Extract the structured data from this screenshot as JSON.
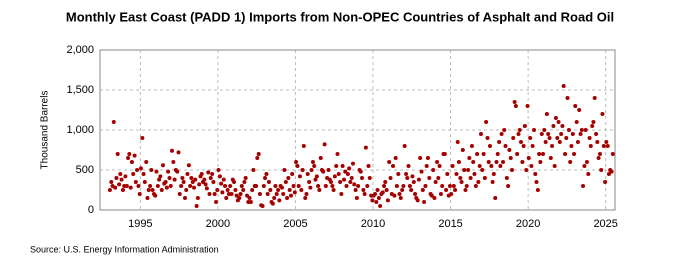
{
  "chart_data": {
    "type": "scatter",
    "title": "Monthly East Coast (PADD 1) Imports from Non-OPEC Countries of Asphalt and Road Oil",
    "y_label": "Thousand Barrels",
    "source": "Source: U.S. Energy Information Administration",
    "color": "#a50000",
    "grid": true,
    "xlim": [
      1992.4,
      2025.6
    ],
    "xticks": [
      1995,
      2000,
      2005,
      2010,
      2015,
      2020,
      2025
    ],
    "ylim": [
      0,
      2000
    ],
    "yticks": [
      0,
      500,
      {
        "value": 1000,
        "label": "1,000"
      },
      {
        "value": 1500,
        "label": "1,500"
      },
      {
        "value": 2000,
        "label": "2,000"
      }
    ],
    "x": [
      1993.04,
      1993.13,
      1993.21,
      1993.29,
      1993.38,
      1993.46,
      1993.54,
      1993.63,
      1993.71,
      1993.79,
      1993.88,
      1993.96,
      1994.04,
      1994.13,
      1994.21,
      1994.29,
      1994.38,
      1994.46,
      1994.54,
      1994.63,
      1994.71,
      1994.79,
      1994.88,
      1994.96,
      1995.04,
      1995.13,
      1995.21,
      1995.29,
      1995.38,
      1995.46,
      1995.54,
      1995.63,
      1995.71,
      1995.79,
      1995.88,
      1995.96,
      1996.04,
      1996.13,
      1996.21,
      1996.29,
      1996.38,
      1996.46,
      1996.54,
      1996.63,
      1996.71,
      1996.79,
      1996.88,
      1996.96,
      1997.04,
      1997.13,
      1997.21,
      1997.29,
      1997.38,
      1997.46,
      1997.54,
      1997.63,
      1997.71,
      1997.79,
      1997.88,
      1997.96,
      1998.04,
      1998.13,
      1998.21,
      1998.29,
      1998.38,
      1998.46,
      1998.54,
      1998.63,
      1998.71,
      1998.79,
      1998.88,
      1998.96,
      1999.04,
      1999.13,
      1999.21,
      1999.29,
      1999.38,
      1999.46,
      1999.54,
      1999.63,
      1999.71,
      1999.79,
      1999.88,
      1999.96,
      2000.04,
      2000.13,
      2000.21,
      2000.29,
      2000.38,
      2000.46,
      2000.54,
      2000.63,
      2000.71,
      2000.79,
      2000.88,
      2000.96,
      2001.04,
      2001.13,
      2001.21,
      2001.29,
      2001.38,
      2001.46,
      2001.54,
      2001.63,
      2001.71,
      2001.79,
      2001.88,
      2001.96,
      2002.04,
      2002.13,
      2002.21,
      2002.29,
      2002.38,
      2002.46,
      2002.54,
      2002.63,
      2002.71,
      2002.79,
      2002.88,
      2002.96,
      2003.04,
      2003.13,
      2003.21,
      2003.29,
      2003.38,
      2003.46,
      2003.54,
      2003.63,
      2003.71,
      2003.79,
      2003.88,
      2003.96,
      2004.04,
      2004.13,
      2004.21,
      2004.29,
      2004.38,
      2004.46,
      2004.54,
      2004.63,
      2004.71,
      2004.79,
      2004.88,
      2004.96,
      2005.04,
      2005.13,
      2005.21,
      2005.29,
      2005.38,
      2005.46,
      2005.54,
      2005.63,
      2005.71,
      2005.79,
      2005.88,
      2005.96,
      2006.04,
      2006.13,
      2006.21,
      2006.29,
      2006.38,
      2006.46,
      2006.54,
      2006.63,
      2006.71,
      2006.79,
      2006.88,
      2006.96,
      2007.04,
      2007.13,
      2007.21,
      2007.29,
      2007.38,
      2007.46,
      2007.54,
      2007.63,
      2007.71,
      2007.79,
      2007.88,
      2007.96,
      2008.04,
      2008.13,
      2008.21,
      2008.29,
      2008.38,
      2008.46,
      2008.54,
      2008.63,
      2008.71,
      2008.79,
      2008.88,
      2008.96,
      2009.04,
      2009.13,
      2009.21,
      2009.29,
      2009.38,
      2009.46,
      2009.54,
      2009.63,
      2009.71,
      2009.79,
      2009.88,
      2009.96,
      2010.04,
      2010.13,
      2010.21,
      2010.29,
      2010.38,
      2010.46,
      2010.54,
      2010.63,
      2010.71,
      2010.79,
      2010.88,
      2010.96,
      2011.04,
      2011.13,
      2011.21,
      2011.29,
      2011.38,
      2011.46,
      2011.54,
      2011.63,
      2011.71,
      2011.79,
      2011.88,
      2011.96,
      2012.04,
      2012.13,
      2012.21,
      2012.29,
      2012.38,
      2012.46,
      2012.54,
      2012.63,
      2012.71,
      2012.79,
      2012.88,
      2012.96,
      2013.04,
      2013.13,
      2013.21,
      2013.29,
      2013.38,
      2013.46,
      2013.54,
      2013.63,
      2013.71,
      2013.79,
      2013.88,
      2013.96,
      2014.04,
      2014.13,
      2014.21,
      2014.29,
      2014.38,
      2014.46,
      2014.54,
      2014.63,
      2014.71,
      2014.79,
      2014.88,
      2014.96,
      2015.04,
      2015.13,
      2015.21,
      2015.29,
      2015.38,
      2015.46,
      2015.54,
      2015.63,
      2015.71,
      2015.79,
      2015.88,
      2015.96,
      2016.04,
      2016.13,
      2016.21,
      2016.29,
      2016.38,
      2016.46,
      2016.54,
      2016.63,
      2016.71,
      2016.79,
      2016.88,
      2016.96,
      2017.04,
      2017.13,
      2017.21,
      2017.29,
      2017.38,
      2017.46,
      2017.54,
      2017.63,
      2017.71,
      2017.79,
      2017.88,
      2017.96,
      2018.04,
      2018.13,
      2018.21,
      2018.29,
      2018.38,
      2018.46,
      2018.54,
      2018.63,
      2018.71,
      2018.79,
      2018.88,
      2018.96,
      2019.04,
      2019.13,
      2019.21,
      2019.29,
      2019.38,
      2019.46,
      2019.54,
      2019.63,
      2019.71,
      2019.79,
      2019.88,
      2019.96,
      2020.04,
      2020.13,
      2020.21,
      2020.29,
      2020.38,
      2020.46,
      2020.54,
      2020.63,
      2020.71,
      2020.79,
      2020.88,
      2020.96,
      2021.04,
      2021.13,
      2021.21,
      2021.29,
      2021.38,
      2021.46,
      2021.54,
      2021.63,
      2021.71,
      2021.79,
      2021.88,
      2021.96,
      2022.04,
      2022.13,
      2022.21,
      2022.29,
      2022.38,
      2022.46,
      2022.54,
      2022.63,
      2022.71,
      2022.79,
      2022.88,
      2022.96,
      2023.04,
      2023.13,
      2023.21,
      2023.29,
      2023.38,
      2023.46,
      2023.54,
      2023.63,
      2023.71,
      2023.79,
      2023.88,
      2023.96,
      2024.04,
      2024.13,
      2024.21,
      2024.29,
      2024.38,
      2024.46,
      2024.54,
      2024.63,
      2024.71,
      2024.79,
      2024.88,
      2024.96,
      2025.04,
      2025.13,
      2025.21,
      2025.29,
      2025.38,
      2025.46
    ],
    "values": [
      250,
      350,
      300,
      1100,
      280,
      400,
      700,
      320,
      450,
      380,
      250,
      300,
      420,
      300,
      650,
      700,
      280,
      600,
      450,
      680,
      350,
      500,
      300,
      200,
      520,
      900,
      450,
      350,
      600,
      150,
      250,
      300,
      500,
      250,
      200,
      180,
      480,
      300,
      380,
      420,
      250,
      560,
      330,
      350,
      280,
      480,
      400,
      300,
      740,
      600,
      380,
      500,
      480,
      720,
      200,
      300,
      400,
      350,
      150,
      250,
      450,
      560,
      300,
      400,
      350,
      280,
      380,
      50,
      150,
      320,
      420,
      450,
      350,
      380,
      320,
      270,
      470,
      200,
      400,
      450,
      350,
      200,
      100,
      250,
      500,
      420,
      330,
      220,
      380,
      300,
      150,
      250,
      200,
      300,
      200,
      380,
      350,
      250,
      180,
      120,
      150,
      200,
      300,
      250,
      350,
      400,
      180,
      100,
      150,
      100,
      250,
      500,
      300,
      300,
      650,
      700,
      200,
      60,
      50,
      300,
      400,
      450,
      200,
      350,
      250,
      100,
      80,
      150,
      300,
      200,
      250,
      120,
      300,
      280,
      200,
      500,
      350,
      150,
      400,
      250,
      180,
      450,
      300,
      220,
      600,
      550,
      300,
      420,
      250,
      500,
      800,
      150,
      200,
      450,
      350,
      280,
      500,
      600,
      550,
      380,
      420,
      300,
      250,
      650,
      500,
      480,
      820,
      300,
      400,
      500,
      380,
      350,
      300,
      250,
      420,
      550,
      700,
      450,
      350,
      200,
      550,
      380,
      480,
      300,
      450,
      520,
      350,
      400,
      580,
      320,
      250,
      150,
      300,
      500,
      480,
      400,
      250,
      200,
      780,
      300,
      550,
      400,
      180,
      120,
      180,
      200,
      100,
      250,
      150,
      50,
      200,
      220,
      300,
      350,
      250,
      120,
      600,
      400,
      200,
      550,
      180,
      650,
      300,
      450,
      200,
      150,
      250,
      300,
      800,
      450,
      400,
      550,
      300,
      250,
      420,
      350,
      200,
      150,
      120,
      380,
      650,
      480,
      250,
      100,
      300,
      550,
      650,
      400,
      200,
      180,
      500,
      150,
      350,
      600,
      400,
      550,
      200,
      300,
      700,
      700,
      250,
      450,
      180,
      300,
      200,
      550,
      300,
      250,
      450,
      850,
      600,
      400,
      350,
      750,
      500,
      250,
      300,
      500,
      650,
      400,
      800,
      600,
      450,
      300,
      700,
      350,
      550,
      950,
      500,
      700,
      400,
      1100,
      900,
      600,
      800,
      550,
      350,
      450,
      150,
      600,
      700,
      850,
      550,
      950,
      600,
      1000,
      800,
      400,
      300,
      750,
      650,
      500,
      900,
      1350,
      1300,
      700,
      950,
      1000,
      850,
      600,
      800,
      1050,
      500,
      1300,
      650,
      900,
      550,
      800,
      1000,
      450,
      350,
      250,
      700,
      600,
      950,
      700,
      1000,
      850,
      1200,
      950,
      900,
      650,
      800,
      1050,
      550,
      1150,
      900,
      1100,
      850,
      950,
      1050,
      1550,
      700,
      900,
      1400,
      1000,
      600,
      800,
      950,
      700,
      1300,
      1100,
      850,
      1250,
      950,
      1000,
      300,
      550,
      1000,
      600,
      450,
      900,
      800,
      1050,
      1100,
      1400,
      950,
      850,
      650,
      700,
      500,
      1200,
      800,
      350,
      850,
      800,
      450,
      500,
      480,
      700
    ]
  }
}
